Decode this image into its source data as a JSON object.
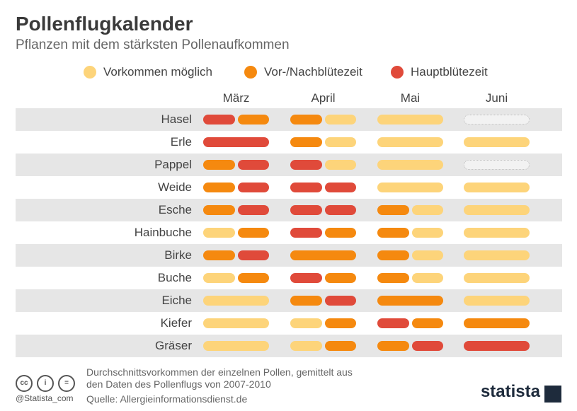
{
  "header": {
    "title": "Pollenflugkalender",
    "subtitle": "Pflanzen mit dem stärksten Pollenaufkommen"
  },
  "colors": {
    "light": "#FDD47A",
    "mid": "#F5890F",
    "main": "#E04A3A",
    "empty": "#F2F2F2"
  },
  "legend": [
    {
      "label": "Vorkommen möglich",
      "level": "light"
    },
    {
      "label": "Vor-/Nachblütezeit",
      "level": "mid"
    },
    {
      "label": "Hauptblütezeit",
      "level": "main"
    }
  ],
  "chart_data": {
    "type": "table",
    "months": [
      "März",
      "April",
      "Mai",
      "Juni"
    ],
    "plants": [
      "Hasel",
      "Erle",
      "Pappel",
      "Weide",
      "Esche",
      "Hainbuche",
      "Birke",
      "Buche",
      "Eiche",
      "Kiefer",
      "Gräser"
    ],
    "rows": [
      [
        [
          "main",
          "mid"
        ],
        [
          "mid",
          "light"
        ],
        [
          "light"
        ],
        [
          "none"
        ]
      ],
      [
        [
          "main"
        ],
        [
          "mid",
          "light"
        ],
        [
          "light"
        ],
        [
          "light"
        ]
      ],
      [
        [
          "mid",
          "main"
        ],
        [
          "main",
          "light"
        ],
        [
          "light"
        ],
        [
          "none"
        ]
      ],
      [
        [
          "mid",
          "main"
        ],
        [
          "main",
          "main"
        ],
        [
          "light"
        ],
        [
          "light"
        ]
      ],
      [
        [
          "mid",
          "main"
        ],
        [
          "main",
          "main"
        ],
        [
          "mid",
          "light"
        ],
        [
          "light"
        ]
      ],
      [
        [
          "light",
          "mid"
        ],
        [
          "main",
          "mid"
        ],
        [
          "mid",
          "light"
        ],
        [
          "light"
        ]
      ],
      [
        [
          "mid",
          "main"
        ],
        [
          "mid"
        ],
        [
          "mid",
          "light"
        ],
        [
          "light"
        ]
      ],
      [
        [
          "light",
          "mid"
        ],
        [
          "main",
          "mid"
        ],
        [
          "mid",
          "light"
        ],
        [
          "light"
        ]
      ],
      [
        [
          "light"
        ],
        [
          "mid",
          "main"
        ],
        [
          "mid"
        ],
        [
          "light"
        ]
      ],
      [
        [
          "light"
        ],
        [
          "light",
          "mid"
        ],
        [
          "main",
          "mid"
        ],
        [
          "mid"
        ]
      ],
      [
        [
          "light"
        ],
        [
          "light",
          "mid"
        ],
        [
          "mid",
          "main"
        ],
        [
          "main"
        ]
      ]
    ]
  },
  "footer": {
    "note": "Durchschnittsvorkommen der einzelnen Pollen, gemittelt aus den Daten des Pollenflugs von 2007-2010",
    "source": "Quelle: Allergieinformationsdienst.de",
    "handle": "@Statista_com",
    "brand": "statista"
  }
}
